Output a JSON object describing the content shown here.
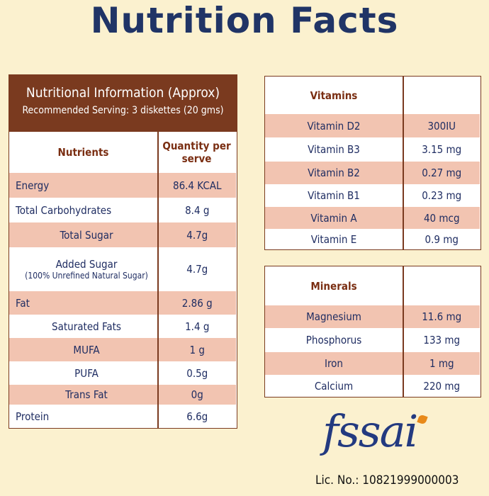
{
  "header": {
    "title": "Nutrition Facts"
  },
  "nutrition_table": {
    "title": "Nutritional Information (Approx)",
    "serving": "Recommended Serving: 3 diskettes (20 gms)",
    "columns": [
      "Nutrients",
      "Quantity per serve"
    ],
    "rows": [
      {
        "name": "Energy",
        "qty": "86.4 KCAL"
      },
      {
        "name": "Total Carbohydrates",
        "qty": "8.4 g"
      },
      {
        "name": "Total Sugar",
        "qty": "4.7g"
      },
      {
        "name": "Added Sugar",
        "note": "(100% Unrefined Natural Sugar)",
        "qty": "4.7g"
      },
      {
        "name": "Fat",
        "qty": "2.86 g"
      },
      {
        "name": "Saturated Fats",
        "qty": "1.4 g"
      },
      {
        "name": "MUFA",
        "qty": "1 g"
      },
      {
        "name": "PUFA",
        "qty": "0.5g"
      },
      {
        "name": "Trans Fat",
        "qty": "0g"
      },
      {
        "name": "Protein",
        "qty": "6.6g"
      }
    ]
  },
  "vitamins_table": {
    "title": "Vitamins",
    "rows": [
      [
        "Vitamin D2",
        "300IU"
      ],
      [
        "Vitamin B3",
        "3.15 mg"
      ],
      [
        "Vitamin B2",
        "0.27 mg"
      ],
      [
        "Vitamin B1",
        "0.23 mg"
      ],
      [
        "Vitamin A",
        "40 mcg"
      ],
      [
        "Vitamin E",
        "0.9 mg"
      ]
    ]
  },
  "minerals_table": {
    "title": "Minerals",
    "rows": [
      [
        "Magnesium",
        "11.6 mg"
      ],
      [
        "Phosphorus",
        "133 mg"
      ],
      [
        "Iron",
        "1 mg"
      ],
      [
        "Calcium",
        "220 mg"
      ]
    ]
  },
  "logo": {
    "text": "fssai",
    "license": "Lic. No.: 10821999000003"
  }
}
